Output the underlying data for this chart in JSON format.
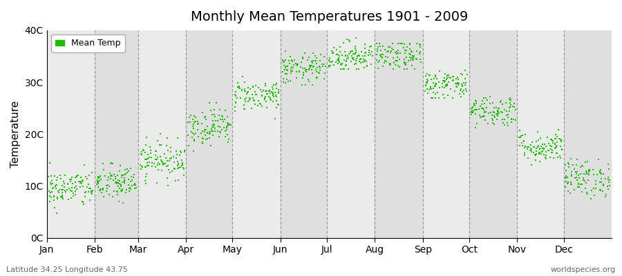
{
  "title": "Monthly Mean Temperatures 1901 - 2009",
  "ylabel": "Temperature",
  "months": [
    "Jan",
    "Feb",
    "Mar",
    "Apr",
    "May",
    "Jun",
    "Jul",
    "Aug",
    "Sep",
    "Oct",
    "Nov",
    "Dec"
  ],
  "month_means": [
    9.5,
    10.5,
    15.0,
    21.5,
    27.5,
    32.5,
    35.0,
    35.0,
    29.5,
    24.5,
    17.5,
    11.5
  ],
  "month_stds": [
    1.8,
    1.8,
    1.8,
    1.8,
    1.5,
    1.5,
    1.5,
    1.5,
    1.5,
    1.5,
    1.5,
    1.8
  ],
  "month_mins": [
    3.5,
    3.5,
    10.0,
    16.0,
    23.0,
    29.5,
    32.5,
    32.5,
    27.0,
    21.0,
    14.0,
    7.5
  ],
  "month_maxs": [
    15.0,
    15.5,
    20.0,
    26.0,
    31.5,
    36.0,
    38.5,
    37.5,
    33.0,
    28.0,
    22.0,
    16.5
  ],
  "n_years": 109,
  "dot_color": "#22BB00",
  "dot_size": 3,
  "background_color_light": "#EBEBEB",
  "background_color_dark": "#DFDFDF",
  "ylim": [
    0,
    40
  ],
  "yticks": [
    0,
    10,
    20,
    30,
    40
  ],
  "ytick_labels": [
    "0C",
    "10C",
    "20C",
    "30C",
    "40C"
  ],
  "legend_label": "Mean Temp",
  "subtitle_left": "Latitude 34.25 Longitude 43.75",
  "subtitle_right": "worldspecies.org",
  "grid_color": "#888888",
  "seed": 42
}
